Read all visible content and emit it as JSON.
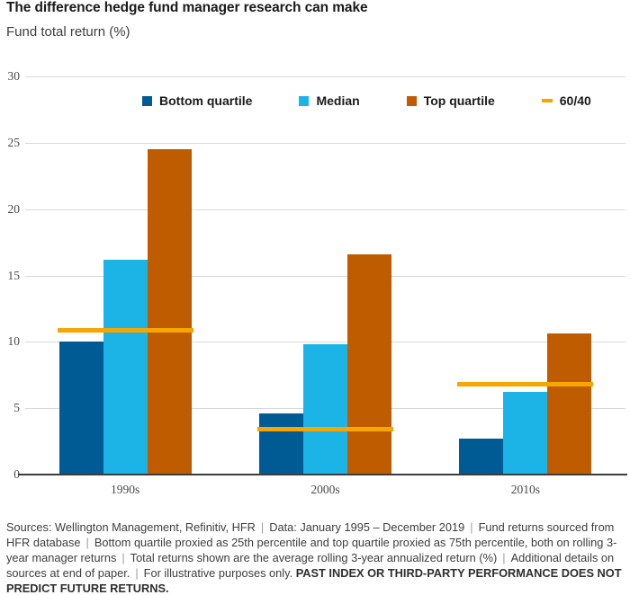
{
  "page": {
    "title": "The difference hedge fund manager research can make",
    "subtitle": "Fund total return (%)"
  },
  "colors": {
    "bottom_quartile": "#005A93",
    "median": "#1CB4E6",
    "top_quartile": "#C05C00",
    "line_60_40": "#F7A600",
    "gridline": "#D9D9D9",
    "baseline": "#3D3D3D",
    "title_text": "#1A1A1A",
    "axis_text": "#4A4A4A",
    "footer_text": "#3D3D3D",
    "separator_text": "#9B9B9B"
  },
  "chart_data": {
    "type": "bar",
    "title": "The difference hedge fund manager research can make",
    "subtitle": "Fund total return (%)",
    "ylabel": "Fund total return (%)",
    "ylim": [
      0,
      30
    ],
    "yticks": [
      0,
      5,
      10,
      15,
      20,
      25,
      30
    ],
    "grid": true,
    "legend_position": "top",
    "categories": [
      "1990s",
      "2000s",
      "2010s"
    ],
    "series": [
      {
        "name": "Bottom quartile",
        "style": "bar",
        "color": "#005A93",
        "values": [
          10.0,
          4.6,
          2.7
        ]
      },
      {
        "name": "Median",
        "style": "bar",
        "color": "#1CB4E6",
        "values": [
          16.2,
          9.8,
          6.2
        ]
      },
      {
        "name": "Top quartile",
        "style": "bar",
        "color": "#C05C00",
        "values": [
          24.5,
          16.6,
          10.6
        ]
      },
      {
        "name": "60/40",
        "style": "dash",
        "color": "#F7A600",
        "values": [
          10.9,
          3.4,
          6.8
        ]
      }
    ]
  },
  "footer": {
    "separator": "|",
    "segments": [
      "Sources: Wellington Management, Refinitiv, HFR",
      "Data: January 1995 – December 2019",
      "Fund returns sourced from HFR database",
      "Bottom quartile proxied as 25th percentile and top quartile proxied as 75th percentile, both on rolling 3-year manager returns",
      "Total returns shown are the average rolling 3-year annualized return (%)",
      "Additional details on sources at end of paper.",
      "For illustrative purposes only."
    ],
    "disclaimer_bold": "PAST INDEX OR THIRD-PARTY PERFORMANCE DOES NOT PREDICT FUTURE RETURNS."
  }
}
